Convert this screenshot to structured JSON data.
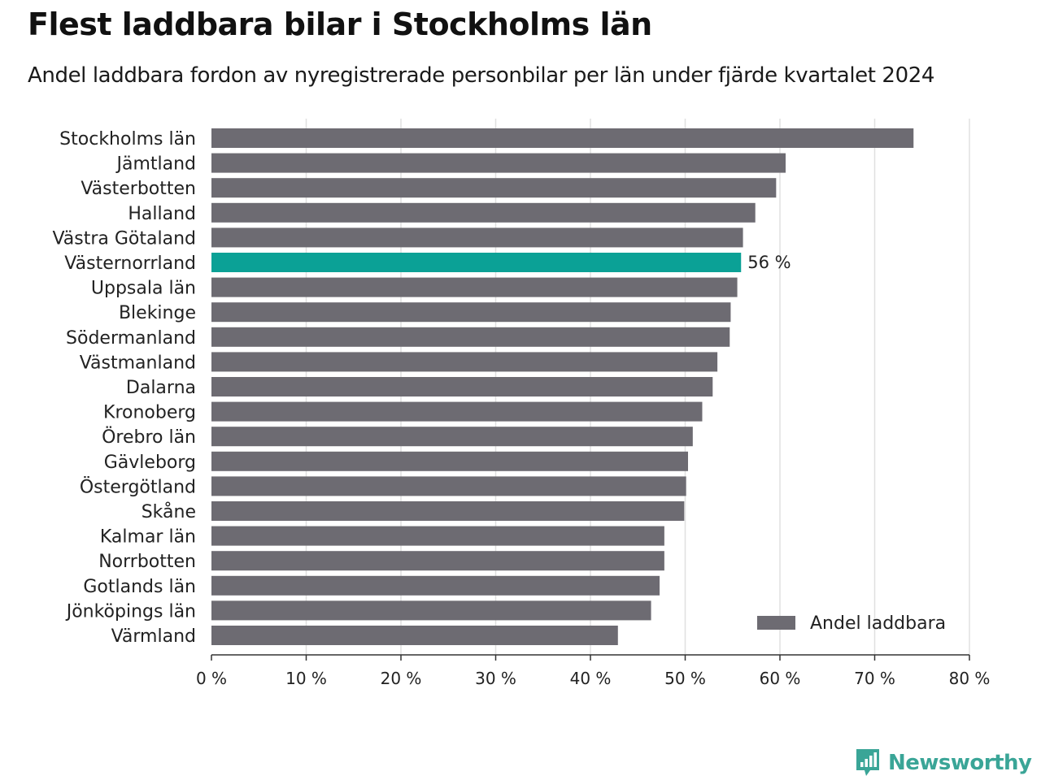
{
  "title": "Flest laddbara bilar i Stockholms län",
  "subtitle": "Andel laddbara fordon av nyregistrerade personbilar per län under fjärde kvartalet 2024",
  "brand": {
    "name": "Newsworthy",
    "icon": "newsworthy-logo-icon",
    "color": "#3aa597"
  },
  "colors": {
    "bar": "#6d6b72",
    "highlight": "#0ba196",
    "grid": "#e0e0e0",
    "axis": "#333333"
  },
  "chart_data": {
    "type": "bar",
    "orientation": "horizontal",
    "title": "Flest laddbara bilar i Stockholms län",
    "subtitle": "Andel laddbara fordon av nyregistrerade personbilar per län under fjärde kvartalet 2024",
    "xlabel": "",
    "ylabel": "",
    "xlim": [
      0,
      80
    ],
    "grid": true,
    "legend": {
      "position": "bottom-right",
      "entries": [
        "Andel laddbara"
      ]
    },
    "series": [
      {
        "name": "Andel laddbara",
        "values": [
          74.1,
          60.6,
          59.6,
          57.4,
          56.1,
          55.9,
          55.5,
          54.8,
          54.7,
          53.4,
          52.9,
          51.8,
          50.8,
          50.3,
          50.1,
          49.9,
          47.8,
          47.8,
          47.3,
          46.4,
          42.9
        ]
      }
    ],
    "categories": [
      "Stockholms län",
      "Jämtland",
      "Västerbotten",
      "Halland",
      "Västra Götaland",
      "Västernorrland",
      "Uppsala län",
      "Blekinge",
      "Södermanland",
      "Västmanland",
      "Dalarna",
      "Kronoberg",
      "Örebro län",
      "Gävleborg",
      "Östergötland",
      "Skåne",
      "Kalmar län",
      "Norrbotten",
      "Gotlands län",
      "Jönköpings län",
      "Värmland"
    ],
    "highlight": {
      "category": "Västernorrland",
      "label": "56 %"
    },
    "ticks": [
      0,
      10,
      20,
      30,
      40,
      50,
      60,
      70,
      80
    ],
    "tick_labels": [
      "0 %",
      "10 %",
      "20 %",
      "30 %",
      "40 %",
      "50 %",
      "60 %",
      "70 %",
      "80 %"
    ]
  }
}
